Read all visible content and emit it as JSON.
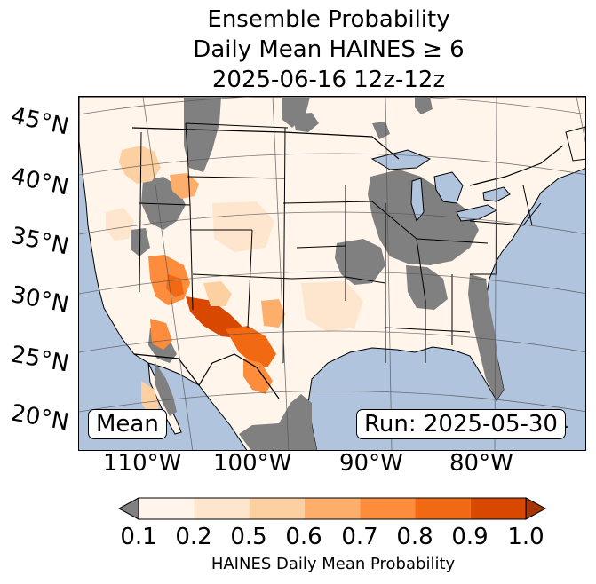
{
  "title": {
    "line1": "Ensemble Probability",
    "line2": "Daily Mean HAINES ≥ 6",
    "line3": "2025-06-16 12z-12z"
  },
  "map": {
    "region": "Continental United States",
    "colors": {
      "ocean": "#b0c4de",
      "land_base": "#fff5eb",
      "no_data": "#808080",
      "boundary": "#000000",
      "graticule": "#555555"
    },
    "lat_labels": [
      "45°N",
      "40°N",
      "35°N",
      "30°N",
      "25°N",
      "20°N"
    ],
    "lon_labels": [
      "110°W",
      "100°W",
      "90°W",
      "80°W"
    ],
    "mean_label": "Mean",
    "run_label": "Run: 2025-05-30"
  },
  "colorbar": {
    "ticks": [
      "0.1",
      "0.2",
      "0.5",
      "0.6",
      "0.7",
      "0.8",
      "0.9",
      "1.0"
    ],
    "colors": [
      "#fff5eb",
      "#fee6ce",
      "#fdd0a2",
      "#fdae6b",
      "#fd8d3c",
      "#f16913",
      "#d94801",
      "#a63603"
    ],
    "under_color": "#808080",
    "label": "HAINES Daily Mean Probability"
  }
}
